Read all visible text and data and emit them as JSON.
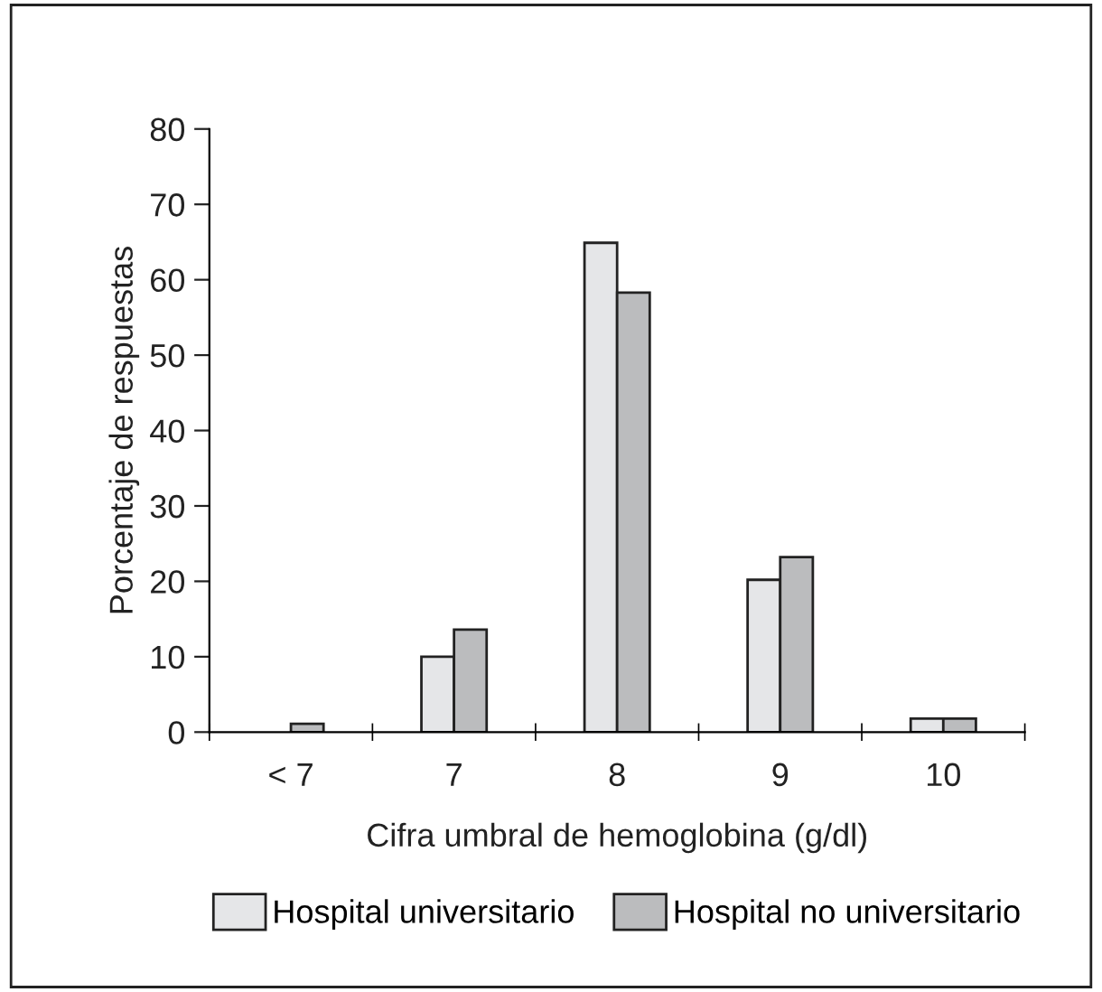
{
  "chart_data": {
    "type": "bar",
    "xlabel": "Cifra umbral de hemoglobina (g/dl)",
    "ylabel": "Porcentaje de respuestas",
    "categories": [
      "< 7",
      "7",
      "8",
      "9",
      "10"
    ],
    "series": [
      {
        "name": "Hospital universitario",
        "color": "#e5e6e8",
        "values": [
          null,
          10,
          64.9,
          20.2,
          1.8
        ]
      },
      {
        "name": "Hospital no universitario",
        "color": "#bbbcbe",
        "values": [
          1.1,
          13.6,
          58.3,
          23.2,
          1.8
        ]
      }
    ],
    "ylim": [
      0,
      80
    ],
    "yticks": [
      0,
      10,
      20,
      30,
      40,
      50,
      60,
      70,
      80
    ],
    "grid": false,
    "legend": "bottom"
  }
}
